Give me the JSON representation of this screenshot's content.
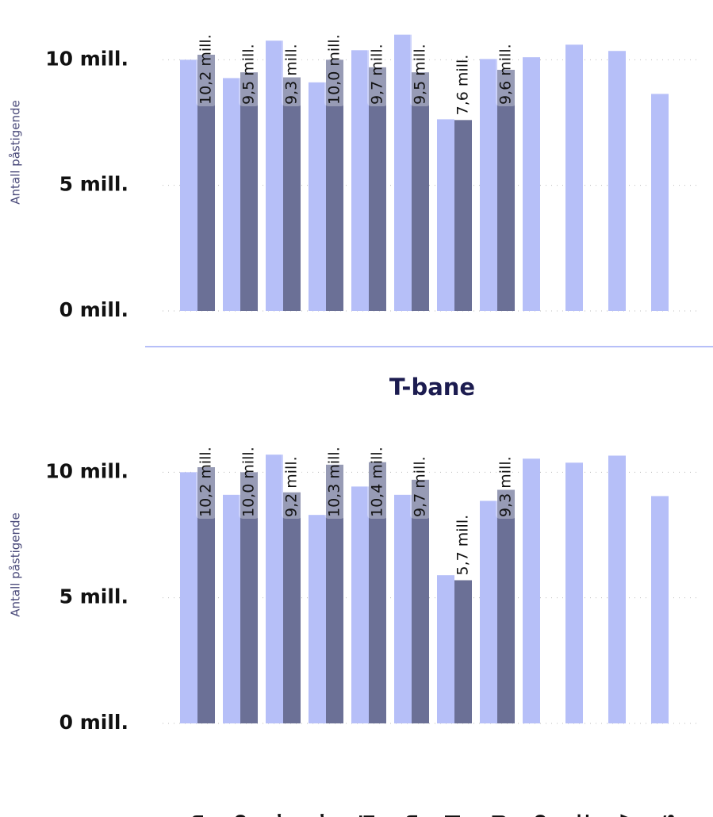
{
  "chart_data": [
    {
      "type": "bar",
      "y_label": "Antall påstigende",
      "ylim": [
        0,
        12
      ],
      "yticks": [
        {
          "value": 0,
          "label": "0 mill."
        },
        {
          "value": 5,
          "label": "5 mill."
        },
        {
          "value": 10,
          "label": "10 mill."
        }
      ],
      "grid": true,
      "series": [
        {
          "color": "#b6bff8",
          "values": [
            10.0,
            9.27,
            10.76,
            9.1,
            10.38,
            11.0,
            7.63,
            10.03,
            10.1,
            10.6,
            10.35,
            8.64
          ]
        },
        {
          "color": "#6b7096",
          "values": [
            10.2,
            9.5,
            9.3,
            10.0,
            9.7,
            9.5,
            7.6,
            9.6,
            null,
            null,
            null,
            null
          ],
          "value_labels": [
            "10,2 mill.",
            "9,5 mill.",
            "9,3 mill.",
            "10,0 mill.",
            "9,7 mill.",
            "9,5 mill.",
            "7,6 mill.",
            "9,6 mill.",
            null,
            null,
            null,
            null
          ]
        }
      ]
    },
    {
      "type": "bar",
      "title": "T-bane",
      "y_label": "Antall påstigende",
      "categories": [
        "Jan",
        "Feb",
        "Mar",
        "Apr",
        "Mai",
        "Jun",
        "Jul",
        "Aug",
        "Sep",
        "Okt",
        "Nov",
        "Des"
      ],
      "ylim": [
        0,
        12
      ],
      "yticks": [
        {
          "value": 0,
          "label": "0 mill."
        },
        {
          "value": 5,
          "label": "5 mill."
        },
        {
          "value": 10,
          "label": "10 mill."
        }
      ],
      "grid": true,
      "series": [
        {
          "color": "#b6bff8",
          "values": [
            10.0,
            9.1,
            10.7,
            8.3,
            9.43,
            9.1,
            5.9,
            8.86,
            10.54,
            10.38,
            10.66,
            9.05
          ]
        },
        {
          "color": "#6b7096",
          "values": [
            10.2,
            10.0,
            9.2,
            10.3,
            10.4,
            9.7,
            5.7,
            9.3,
            null,
            null,
            null,
            null
          ],
          "value_labels": [
            "10,2 mill.",
            "10,0 mill.",
            "9,2 mill.",
            "10,3 mill.",
            "10,4 mill.",
            "9,7 mill.",
            "5,7 mill.",
            "9,3 mill.",
            null,
            null,
            null,
            null
          ]
        }
      ]
    }
  ]
}
